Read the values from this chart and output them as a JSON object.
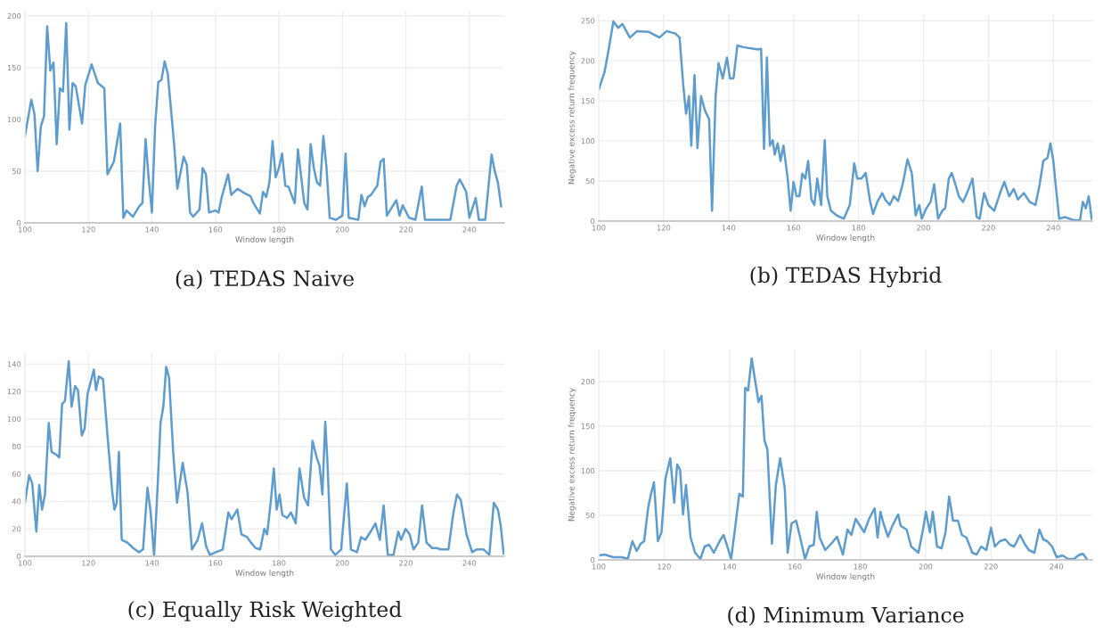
{
  "chart_data": [
    {
      "type": "line",
      "title": "(a) TEDAS Naive",
      "xlabel": "Window length",
      "xlim": [
        100,
        251
      ],
      "xticks": [
        100,
        120,
        140,
        160,
        180,
        200,
        220,
        240
      ],
      "ylim": [
        0,
        205
      ],
      "yticks": [
        0,
        50,
        100,
        150,
        200
      ],
      "grid": true,
      "marker": "none",
      "line_style": "solid",
      "series": [
        {
          "color": "#5d9ccf",
          "x": [
            100,
            102,
            103,
            104,
            105,
            106,
            107,
            108,
            109,
            110,
            111,
            112,
            113,
            114,
            115,
            116,
            118,
            119,
            121,
            123,
            125,
            126,
            128,
            130,
            131,
            132,
            134,
            136,
            137,
            138,
            139,
            140,
            141,
            142,
            143,
            144,
            145,
            147,
            148,
            150,
            151,
            152,
            153,
            155,
            156,
            157,
            158,
            160,
            161,
            162,
            164,
            165,
            167,
            169,
            171,
            172,
            174,
            175,
            176,
            177,
            178,
            179,
            180,
            181,
            182,
            183,
            185,
            186,
            188,
            189,
            190,
            191,
            192,
            193,
            194,
            195,
            196,
            198,
            200,
            201,
            202,
            205,
            206,
            207,
            208,
            209,
            211,
            212,
            213,
            214,
            217,
            218,
            219,
            221,
            223,
            225,
            226,
            228,
            234,
            236,
            237,
            239,
            240,
            242,
            243,
            245,
            247,
            248,
            249,
            250
          ],
          "values": [
            84,
            119,
            105,
            50,
            93,
            103,
            190,
            147,
            155,
            76,
            130,
            127,
            193,
            90,
            135,
            132,
            96,
            133,
            153,
            135,
            130,
            47,
            59,
            96,
            5,
            12,
            6,
            16,
            19,
            81,
            42,
            10,
            93,
            136,
            138,
            156,
            144,
            76,
            33,
            64,
            56,
            10,
            6,
            13,
            53,
            47,
            10,
            12,
            10,
            25,
            47,
            27,
            33,
            29,
            26,
            19,
            9,
            30,
            25,
            39,
            79,
            44,
            53,
            67,
            36,
            35,
            19,
            71,
            19,
            13,
            76,
            53,
            39,
            36,
            84,
            53,
            5,
            3,
            7,
            67,
            5,
            3,
            27,
            16,
            25,
            27,
            36,
            59,
            62,
            7,
            22,
            7,
            17,
            5,
            3,
            35,
            3,
            3,
            3,
            36,
            42,
            30,
            5,
            24,
            3,
            3,
            66,
            50,
            39,
            16
          ]
        }
      ]
    },
    {
      "type": "line",
      "title": "(b) TEDAS Hybrid",
      "xlabel": "Window length",
      "ylabel": "Negative excess return frequency",
      "xlim": [
        100,
        252
      ],
      "xticks": [
        100,
        120,
        140,
        160,
        180,
        200,
        220,
        240
      ],
      "ylim": [
        0,
        258
      ],
      "yticks": [
        0,
        50,
        100,
        150,
        200,
        250
      ],
      "grid": true,
      "marker": "none",
      "line_style": "solid",
      "series": [
        {
          "color": "#5d9ccf",
          "x": [
            100.0,
            101.8,
            103.1,
            104.5,
            106.0,
            107.3,
            109.6,
            111.8,
            115.5,
            118.7,
            120.9,
            123.6,
            124.9,
            126.0,
            126.9,
            127.8,
            128.5,
            129.5,
            130.4,
            131.5,
            132.7,
            134.0,
            134.9,
            136.0,
            136.9,
            138.2,
            139.5,
            140.4,
            141.5,
            142.7,
            144.5,
            149.1,
            150.0,
            150.9,
            151.8,
            152.7,
            153.6,
            154.2,
            155.1,
            156.0,
            156.9,
            158.2,
            159.1,
            160.0,
            160.9,
            161.8,
            162.7,
            163.6,
            164.5,
            165.5,
            166.4,
            167.3,
            168.5,
            169.6,
            170.4,
            171.5,
            173.3,
            175.5,
            177.3,
            178.7,
            179.6,
            180.9,
            182.2,
            183.6,
            184.5,
            185.8,
            187.3,
            188.2,
            189.6,
            190.9,
            192.2,
            193.6,
            195.1,
            196.4,
            197.6,
            198.7,
            199.5,
            200.9,
            202.2,
            203.3,
            204.5,
            205.8,
            206.7,
            207.8,
            208.7,
            209.6,
            210.9,
            212.2,
            213.6,
            215.1,
            216.4,
            217.3,
            218.7,
            220.0,
            221.8,
            223.6,
            224.9,
            226.4,
            227.8,
            229.1,
            230.9,
            232.7,
            234.5,
            235.8,
            236.9,
            238.2,
            239.1,
            240.0,
            240.9,
            241.8,
            243.6,
            246.4,
            248.2,
            249.1,
            250.0,
            250.9,
            251.8
          ],
          "values": [
            164,
            186,
            215,
            249,
            241,
            246,
            229,
            237,
            236,
            229,
            237,
            234,
            229,
            171,
            134,
            156,
            94,
            182,
            91,
            156,
            138,
            127,
            13,
            156,
            197,
            178,
            204,
            178,
            178,
            219,
            217,
            214,
            215,
            90,
            204,
            94,
            101,
            83,
            97,
            75,
            94,
            53,
            13,
            49,
            31,
            31,
            59,
            53,
            75,
            27,
            20,
            53,
            20,
            101,
            31,
            13,
            7,
            3,
            20,
            72,
            53,
            53,
            60,
            24,
            9,
            24,
            35,
            27,
            20,
            31,
            25,
            46,
            77,
            60,
            7,
            20,
            3,
            16,
            24,
            46,
            3,
            13,
            16,
            53,
            60,
            49,
            31,
            24,
            37,
            53,
            5,
            3,
            35,
            20,
            13,
            35,
            49,
            31,
            40,
            27,
            35,
            24,
            20,
            46,
            75,
            79,
            97,
            75,
            38,
            3,
            5,
            1,
            1,
            24,
            16,
            31,
            3
          ]
        }
      ]
    },
    {
      "type": "line",
      "title": "(c) Equally Risk Weighted",
      "xlabel": "Window length",
      "xlim": [
        100,
        251
      ],
      "xticks": [
        100,
        120,
        140,
        160,
        180,
        200,
        220,
        240
      ],
      "ylim": [
        0,
        148
      ],
      "yticks": [
        0,
        20,
        40,
        60,
        80,
        100,
        120,
        140
      ],
      "grid": true,
      "marker": "none",
      "line_style": "solid",
      "series": [
        {
          "color": "#5d9ccf",
          "x": [
            100,
            101.3,
            102.3,
            103.6,
            104.5,
            105.4,
            106.3,
            107.5,
            108.4,
            109.9,
            110.8,
            111.7,
            112.6,
            113.8,
            114.7,
            115.8,
            116.7,
            117.9,
            118.8,
            119.7,
            120.6,
            121.7,
            122.4,
            123.3,
            124.6,
            126.0,
            127.5,
            128.2,
            128.9,
            129.6,
            130.5,
            132.3,
            134.1,
            135.9,
            137.2,
            138.6,
            139.5,
            140.7,
            141.8,
            142.7,
            143.6,
            144.5,
            145.4,
            146.7,
            147.9,
            149.7,
            151.2,
            152.6,
            154.4,
            155.8,
            157.1,
            158.3,
            160.1,
            162.3,
            164.1,
            165.1,
            166.9,
            168.2,
            170.0,
            171.2,
            172.7,
            174.1,
            175.4,
            176.3,
            177.5,
            178.4,
            179.3,
            180.2,
            181.1,
            182.6,
            183.8,
            185.3,
            186.5,
            187.9,
            189.2,
            190.6,
            191.9,
            192.8,
            193.7,
            194.6,
            195.3,
            196.4,
            197.8,
            199.6,
            201.4,
            202.7,
            204.6,
            205.9,
            207.2,
            208.9,
            210.4,
            211.8,
            213.0,
            214.3,
            216.1,
            217.6,
            218.5,
            219.9,
            221.2,
            222.4,
            223.9,
            225.1,
            226.5,
            228.3,
            229.8,
            231.0,
            233.4,
            235.0,
            236.1,
            237.3,
            239.1,
            240.9,
            242.3,
            244.5,
            246.3,
            247.7,
            249.0,
            249.9,
            250.8
          ],
          "values": [
            39,
            59,
            53,
            18,
            52,
            34,
            45,
            97,
            76,
            74,
            72,
            111,
            113,
            142,
            109,
            124,
            121,
            88,
            93,
            118,
            126,
            136,
            121,
            131,
            129,
            88,
            47,
            34,
            39,
            76,
            12,
            10,
            6,
            3,
            5,
            50,
            34,
            1,
            51,
            97,
            109,
            138,
            130,
            76,
            39,
            68,
            47,
            5,
            12,
            24,
            7,
            1,
            3,
            5,
            32,
            27,
            34,
            16,
            14,
            10,
            6,
            5,
            20,
            16,
            41,
            64,
            34,
            45,
            30,
            28,
            32,
            24,
            64,
            43,
            37,
            84,
            72,
            66,
            45,
            98,
            68,
            5,
            1,
            5,
            53,
            5,
            3,
            14,
            12,
            18,
            24,
            12,
            37,
            1,
            1,
            18,
            12,
            20,
            16,
            5,
            10,
            37,
            10,
            6,
            6,
            5,
            5,
            32,
            45,
            41,
            16,
            3,
            5,
            5,
            1,
            39,
            34,
            22,
            2
          ]
        }
      ]
    },
    {
      "type": "line",
      "title": "(d) Minimum Variance",
      "xlabel": "Window length",
      "ylabel": "Negative excess return frequency",
      "xlim": [
        100,
        251
      ],
      "xticks": [
        100,
        120,
        140,
        160,
        180,
        200,
        220,
        240
      ],
      "ylim": [
        0,
        236
      ],
      "yticks": [
        0,
        50,
        100,
        150,
        200
      ],
      "grid": true,
      "marker": "none",
      "line_style": "solid",
      "series": [
        {
          "color": "#5d9ccf",
          "x": [
            100,
            101.8,
            104.4,
            107.1,
            108.9,
            110.3,
            111.6,
            112.8,
            113.9,
            115.1,
            116,
            116.9,
            118.1,
            119.2,
            120.4,
            121.9,
            123.1,
            124,
            124.9,
            125.8,
            126.7,
            128.1,
            129.5,
            131.1,
            132.4,
            133.8,
            135.2,
            137,
            138.2,
            139.1,
            140.5,
            141.8,
            143,
            144.1,
            144.8,
            145.7,
            146.8,
            147.6,
            148.9,
            149.8,
            150.7,
            151.6,
            153,
            154.2,
            155.5,
            156.9,
            157.8,
            159,
            160.4,
            161.9,
            163.1,
            164.4,
            165.8,
            166.7,
            167.6,
            169.3,
            171.1,
            172.9,
            174.7,
            176.1,
            177.3,
            178.6,
            180,
            181.2,
            182.7,
            184.4,
            185.3,
            186.2,
            187.1,
            188.5,
            189.8,
            191.6,
            192.4,
            194.2,
            195.6,
            197.8,
            199.2,
            200.1,
            201.3,
            202.2,
            203.5,
            204.9,
            206.1,
            207.2,
            208.4,
            209.9,
            211.1,
            212.5,
            214.3,
            215.6,
            217,
            218.6,
            220,
            221.2,
            222.7,
            224.4,
            225.8,
            227.1,
            228.9,
            230.3,
            231.6,
            233.3,
            234.8,
            236,
            237.2,
            238.7,
            240.1,
            241.9,
            243.6,
            245.4,
            246.7,
            248.1,
            249.3
          ],
          "values": [
            5,
            6,
            3,
            3,
            1,
            21,
            10,
            18,
            21,
            58,
            74,
            87,
            21,
            31,
            91,
            114,
            64,
            107,
            101,
            51,
            84,
            25,
            8,
            1,
            15,
            17,
            8,
            21,
            28,
            18,
            1,
            38,
            74,
            71,
            193,
            190,
            226,
            207,
            177,
            184,
            134,
            124,
            18,
            84,
            114,
            81,
            8,
            41,
            44,
            21,
            1,
            15,
            17,
            54,
            25,
            11,
            18,
            26,
            6,
            34,
            28,
            46,
            38,
            31,
            46,
            58,
            25,
            54,
            41,
            26,
            38,
            51,
            38,
            34,
            15,
            8,
            34,
            54,
            31,
            54,
            15,
            13,
            31,
            71,
            44,
            44,
            28,
            25,
            8,
            6,
            15,
            11,
            36,
            15,
            21,
            23,
            17,
            15,
            28,
            18,
            11,
            8,
            34,
            23,
            21,
            15,
            3,
            5,
            1,
            1,
            5,
            7,
            1
          ]
        }
      ]
    }
  ]
}
